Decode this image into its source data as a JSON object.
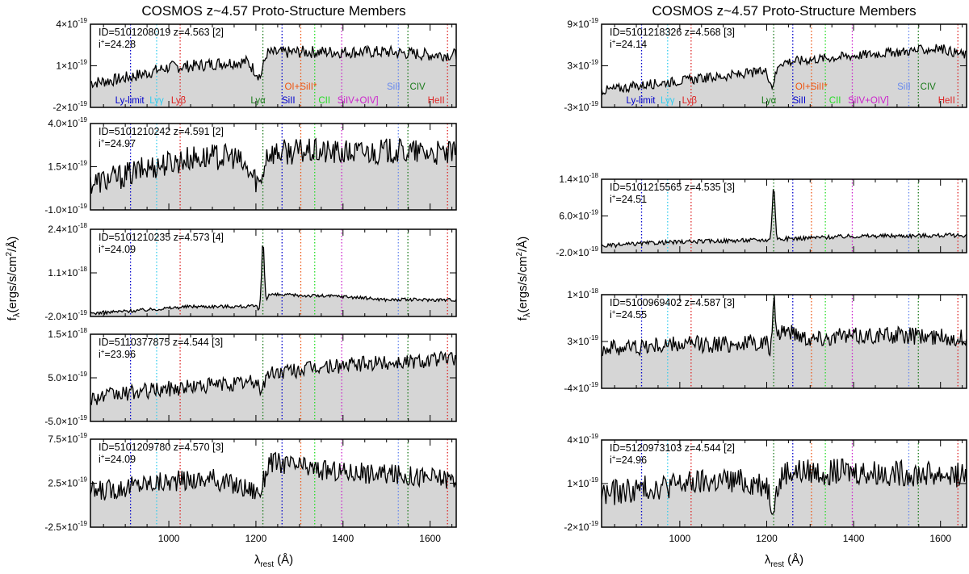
{
  "left_title": "COSMOS z~4.57 Proto-Structure Members",
  "right_title": "COSMOS z~4.57 Proto-Structure Members",
  "ylabel": "fλ(ergs/s/cm²/Å)",
  "xlabel": "λrest (Å)",
  "xticks": [
    "1000",
    "1200",
    "1400",
    "1600"
  ],
  "chart_data": {
    "type": "line",
    "xlim": [
      820,
      1660
    ],
    "xticks": [
      1000,
      1200,
      1400,
      1600
    ],
    "xlabel": "λrest (Å)",
    "ylabel": "fλ(ergs/s/cm²/Å)",
    "lines": [
      {
        "name": "Ly-limit",
        "wave": 912,
        "color": "#0000cc"
      },
      {
        "name": "Lyγ",
        "wave": 972,
        "color": "#33ccee"
      },
      {
        "name": "Lyβ",
        "wave": 1026,
        "color": "#dd2222"
      },
      {
        "name": "Lyα",
        "wave": 1216,
        "color": "#1a7a1a"
      },
      {
        "name": "SiII",
        "wave": 1260,
        "color": "#0000cc"
      },
      {
        "name": "OI+SiII*",
        "wave": 1303,
        "color": "#ee5511"
      },
      {
        "name": "CII",
        "wave": 1335,
        "color": "#22dd22"
      },
      {
        "name": "SiIV+OIV]",
        "wave": 1397,
        "color": "#cc22cc"
      },
      {
        "name": "SiII",
        "wave": 1527,
        "color": "#6688ee"
      },
      {
        "name": "CIV",
        "wave": 1549,
        "color": "#1a7a1a"
      },
      {
        "name": "HeII",
        "wave": 1640,
        "color": "#dd2222"
      }
    ],
    "panels": [
      {
        "column": "left",
        "id": "ID=5101208019 z=4.563 [2]",
        "imag": "24.28",
        "ylim": [
          -2e-19,
          4e-19
        ],
        "yticks": [
          {
            "v": -2e-19,
            "m": "-2",
            "e": "-19"
          },
          {
            "v": 1e-19,
            "m": "1",
            "e": "-19"
          },
          {
            "v": 4e-19,
            "m": "4",
            "e": "-19"
          }
        ],
        "show_lines": true,
        "labels_low": true,
        "flux": [
          [
            830,
            -2e-20
          ],
          [
            880,
            0.0
          ],
          [
            940,
            4e-20
          ],
          [
            1000,
            9e-20
          ],
          [
            1060,
            1e-19
          ],
          [
            1120,
            1.2e-19
          ],
          [
            1180,
            1.3e-19
          ],
          [
            1210,
            2e-20
          ],
          [
            1225,
            1.9e-19
          ],
          [
            1300,
            2e-19
          ],
          [
            1400,
            2e-19
          ],
          [
            1500,
            2e-19
          ],
          [
            1600,
            1.8e-19
          ],
          [
            1660,
            1.8e-19
          ]
        ],
        "noise": 4.5e-20
      },
      {
        "column": "left",
        "id": "ID=5101210242 z=4.591 [2]",
        "imag": "24.97",
        "ylim": [
          -1e-19,
          4e-19
        ],
        "yticks": [
          {
            "v": -1e-19,
            "m": "-1.0",
            "e": "-19"
          },
          {
            "v": 1.5e-19,
            "m": "1.5",
            "e": "-19"
          },
          {
            "v": 4e-19,
            "m": "4.0",
            "e": "-19"
          }
        ],
        "show_lines": false,
        "flux": [
          [
            830,
            6e-20
          ],
          [
            900,
            1e-19
          ],
          [
            960,
            1.5e-19
          ],
          [
            1050,
            2e-19
          ],
          [
            1150,
            2.1e-19
          ],
          [
            1210,
            5e-20
          ],
          [
            1225,
            2.3e-19
          ],
          [
            1300,
            2.4e-19
          ],
          [
            1400,
            2.3e-19
          ],
          [
            1500,
            2.4e-19
          ],
          [
            1600,
            2.3e-19
          ],
          [
            1660,
            2.2e-19
          ]
        ],
        "noise": 7.5e-20
      },
      {
        "column": "left",
        "id": "ID=5101210235 z=4.573 [4]",
        "imag": "24.09",
        "ylim": [
          -2e-19,
          2.4e-18
        ],
        "yticks": [
          {
            "v": -2e-19,
            "m": "-2.0",
            "e": "-19"
          },
          {
            "v": 1.1e-18,
            "m": "1.1",
            "e": "-18"
          },
          {
            "v": 2.4e-18,
            "m": "2.4",
            "e": "-18"
          }
        ],
        "show_lines": false,
        "emission": {
          "wave": 1216,
          "peak": 2e-18
        },
        "flux": [
          [
            830,
            -1e-19
          ],
          [
            950,
            0.0
          ],
          [
            1050,
            1e-19
          ],
          [
            1200,
            1e-19
          ],
          [
            1212,
            -1e-19
          ],
          [
            1230,
            4.5e-19
          ],
          [
            1400,
            4e-19
          ],
          [
            1500,
            3e-19
          ],
          [
            1660,
            3e-19
          ]
        ],
        "noise": 5e-20
      },
      {
        "column": "left",
        "id": "ID=5110377875 z=4.544 [3]",
        "imag": "23.96",
        "ylim": [
          -5e-19,
          1.5e-18
        ],
        "yticks": [
          {
            "v": -5e-19,
            "m": "-5.0",
            "e": "-19"
          },
          {
            "v": 5e-19,
            "m": "5.0",
            "e": "-19"
          },
          {
            "v": 1.5e-18,
            "m": "1.5",
            "e": "-18"
          }
        ],
        "show_lines": false,
        "flux": [
          [
            830,
            5e-20
          ],
          [
            950,
            2e-19
          ],
          [
            1050,
            3e-19
          ],
          [
            1200,
            4e-19
          ],
          [
            1212,
            2.5e-19
          ],
          [
            1230,
            6e-19
          ],
          [
            1350,
            7.5e-19
          ],
          [
            1500,
            8.5e-19
          ],
          [
            1660,
            9.5e-19
          ]
        ],
        "noise": 1.8e-19
      },
      {
        "column": "left",
        "id": "ID=5101209780 z=4.570 [3]",
        "imag": "24.09",
        "ylim": [
          -2.5e-19,
          7.5e-19
        ],
        "yticks": [
          {
            "v": -2.5e-19,
            "m": "-2.5",
            "e": "-19"
          },
          {
            "v": 2.5e-19,
            "m": "2.5",
            "e": "-19"
          },
          {
            "v": 7.5e-19,
            "m": "7.5",
            "e": "-19"
          }
        ],
        "show_lines": false,
        "flux": [
          [
            830,
            1.5e-19
          ],
          [
            950,
            2.5e-19
          ],
          [
            1100,
            3e-19
          ],
          [
            1210,
            1.5e-19
          ],
          [
            1230,
            5e-19
          ],
          [
            1350,
            4e-19
          ],
          [
            1500,
            3.5e-19
          ],
          [
            1660,
            3e-19
          ]
        ],
        "noise": 1.2e-19
      },
      {
        "column": "right",
        "id": "ID=5101218326 z=4.568 [3]",
        "imag": "24.14",
        "ylim": [
          -3e-19,
          9e-19
        ],
        "yticks": [
          {
            "v": -3e-19,
            "m": "-3",
            "e": "-19"
          },
          {
            "v": 3e-19,
            "m": "3",
            "e": "-19"
          },
          {
            "v": 9e-19,
            "m": "9",
            "e": "-19"
          }
        ],
        "show_lines": true,
        "labels_low": true,
        "flux": [
          [
            830,
            -5e-20
          ],
          [
            950,
            5e-20
          ],
          [
            1100,
            1.5e-19
          ],
          [
            1200,
            2.2e-19
          ],
          [
            1212,
            0.0
          ],
          [
            1230,
            3.5e-19
          ],
          [
            1400,
            4.5e-19
          ],
          [
            1500,
            5e-19
          ],
          [
            1600,
            5.5e-19
          ],
          [
            1660,
            4.5e-19
          ]
        ],
        "noise": 7e-20
      },
      {
        "column": "right",
        "id": "ID=5101215565 z=4.535 [3]",
        "imag": "24.51",
        "ylim": [
          -2e-19,
          1.4e-18
        ],
        "yticks": [
          {
            "v": -2e-19,
            "m": "-2.0",
            "e": "-19"
          },
          {
            "v": 6e-19,
            "m": "6.0",
            "e": "-19"
          },
          {
            "v": 1.4e-18,
            "m": "1.4",
            "e": "-18"
          }
        ],
        "show_lines": false,
        "emission": {
          "wave": 1216,
          "peak": 1.15e-18
        },
        "flux": [
          [
            830,
            -5e-20
          ],
          [
            950,
            2e-20
          ],
          [
            1100,
            6e-20
          ],
          [
            1200,
            8e-20
          ],
          [
            1230,
            1e-19
          ],
          [
            1400,
            1.6e-19
          ],
          [
            1660,
            1.8e-19
          ]
        ],
        "noise": 4.5e-20
      },
      {
        "column": "right",
        "id": "ID=5100969402 z=4.587 [3]",
        "imag": "24.55",
        "ylim": [
          -4e-19,
          1e-18
        ],
        "yticks": [
          {
            "v": -4e-19,
            "m": "-4",
            "e": "-19"
          },
          {
            "v": 3e-19,
            "m": "3",
            "e": "-19"
          },
          {
            "v": 1e-18,
            "m": "1",
            "e": "-18"
          }
        ],
        "show_lines": false,
        "emission": {
          "wave": 1216,
          "peak": 8.5e-19
        },
        "flux": [
          [
            830,
            2e-19
          ],
          [
            1000,
            2.5e-19
          ],
          [
            1200,
            2.8e-19
          ],
          [
            1212,
            5e-20
          ],
          [
            1235,
            5e-19
          ],
          [
            1300,
            3.5e-19
          ],
          [
            1450,
            4e-19
          ],
          [
            1660,
            3.5e-19
          ]
        ],
        "noise": 1.3e-19
      },
      {
        "column": "right",
        "id": "ID=5120973103 z=4.544 [2]",
        "imag": "24.96",
        "ylim": [
          -2e-19,
          4e-19
        ],
        "yticks": [
          {
            "v": -2e-19,
            "m": "-2",
            "e": "-19"
          },
          {
            "v": 1e-19,
            "m": "1",
            "e": "-19"
          },
          {
            "v": 4e-19,
            "m": "4",
            "e": "-19"
          }
        ],
        "show_lines": false,
        "flux": [
          [
            830,
            3e-20
          ],
          [
            950,
            8e-20
          ],
          [
            1100,
            1.2e-19
          ],
          [
            1200,
            1e-19
          ],
          [
            1212,
            -5e-20
          ],
          [
            1240,
            1.8e-19
          ],
          [
            1400,
            1.8e-19
          ],
          [
            1660,
            1.6e-19
          ]
        ],
        "noise": 9e-20
      }
    ]
  }
}
